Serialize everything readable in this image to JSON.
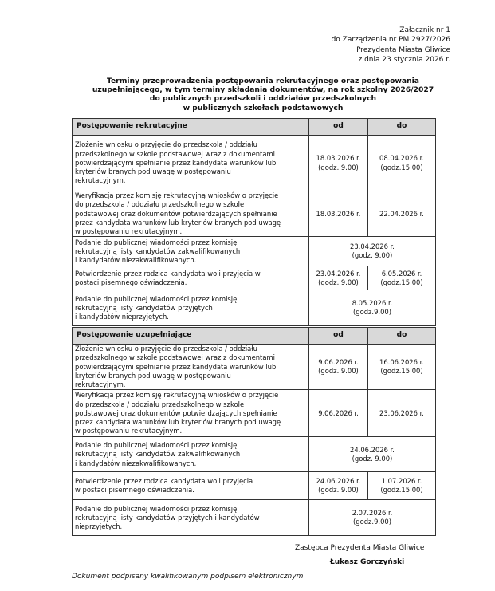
{
  "annex": "Załącznik nr 1\ndo Zarządzenia nr PM 2927/2026\nPrezydenta Miasta Gliwice\nz dnia 23  stycznia 2026 r.",
  "title": "Terminy przeprowadzenia postępowania rekrutacyjnego oraz postępowania\nuzupełniającego, w tym terminy składania dokumentów, na rok szkolny 2026/2027\ndo publicznych przedszkoli i oddziałów przedszkolnych\nw publicznych szkołach podstawowych",
  "tables": [
    {
      "header": [
        "Postępowanie rekrutacyjne",
        "od",
        "do"
      ],
      "rows": [
        {
          "desc": "Złożenie wniosku o przyjęcie do przedszkola / oddziału\nprzedszkolnego w szkole podstawowej wraz z dokumentami\npotwierdzającymi spełnianie przez kandydata warunków lub\nkryteriów branych pod uwagę w postępowaniu\nrekrutacyjnym.",
          "od": "18.03.2026 r.\n(godz. 9.00)",
          "do": "08.04.2026 r.\n(godz.15.00)"
        },
        {
          "desc": "Weryfikacja przez komisję rekrutacyjną wniosków o przyjęcie\ndo  przedszkola / oddziału przedszkolnego w szkole\npodstawowej oraz dokumentów potwierdzających spełnianie\nprzez kandydata warunków lub kryteriów branych pod uwagę\nw postępowaniu rekrutacyjnym.",
          "od": "18.03.2026 r.",
          "do": "22.04.2026 r."
        },
        {
          "desc": "Podanie do publicznej wiadomości przez komisję\nrekrutacyjną listy kandydatów zakwalifikowanych\ni kandydatów niezakwalifikowanych.",
          "date": "23.04.2026 r.\n(godz. 9.00)"
        },
        {
          "desc": "Potwierdzenie przez rodzica kandydata woli przyjęcia w\npostaci pisemnego oświadczenia.",
          "od": "23.04.2026 r.\n(godz. 9.00)",
          "do": "6.05.2026 r.\n(godz.15.00)"
        },
        {
          "desc": "Podanie do publicznej wiadomości przez komisję\nrekrutacyjną listy kandydatów przyjętych\ni kandydatów nieprzyjętych.",
          "date": "8.05.2026 r.\n(godz.9.00)"
        }
      ]
    },
    {
      "header": [
        "Postępowanie uzupełniające",
        "od",
        "do"
      ],
      "rows": [
        {
          "desc": "Złożenie wniosku o przyjęcie do  przedszkola / oddziału\nprzedszkolnego w szkole podstawowej wraz z dokumentami\npotwierdzającymi spełnianie przez kandydata warunków lub\nkryteriów branych pod uwagę w postępowaniu\nrekrutacyjnym.",
          "od": "9.06.2026 r.\n(godz. 9.00)",
          "do": "16.06.2026 r.\n(godz.15.00)"
        },
        {
          "desc": "Weryfikacja przez komisję rekrutacyjną wniosków o przyjęcie\ndo  przedszkola / oddziału przedszkolnego w szkole\npodstawowej oraz dokumentów potwierdzających spełnianie\nprzez kandydata warunków lub kryteriów branych pod uwagę\nw postępowaniu rekrutacyjnym.",
          "od": "9.06.2026 r.",
          "do": "23.06.2026 r."
        },
        {
          "desc": "Podanie do publicznej wiadomości przez komisję\nrekrutacyjną listy kandydatów zakwalifikowanych\ni kandydatów niezakwalifikowanych.",
          "date": "24.06.2026 r.\n(godz. 9.00)"
        },
        {
          "desc": "Potwierdzenie przez rodzica kandydata woli przyjęcia\nw postaci pisemnego oświadczenia.",
          "od": "24.06.2026 r.\n(godz. 9.00)",
          "do": "1.07.2026 r.\n(godz.15.00)"
        },
        {
          "desc": "Podanie do publicznej wiadomości przez komisję\nrekrutacyjną listy kandydatów przyjętych i kandydatów\nnieprzyjętych.",
          "date": "2.07.2026 r.\n(godz.9.00)"
        }
      ]
    }
  ],
  "signature": {
    "role": "Zastępca Prezydenta Miasta Gliwice",
    "name": "Łukasz Gorczyński",
    "note": "Dokument podpisany kwalifikowanym podpisem elektronicznym"
  }
}
